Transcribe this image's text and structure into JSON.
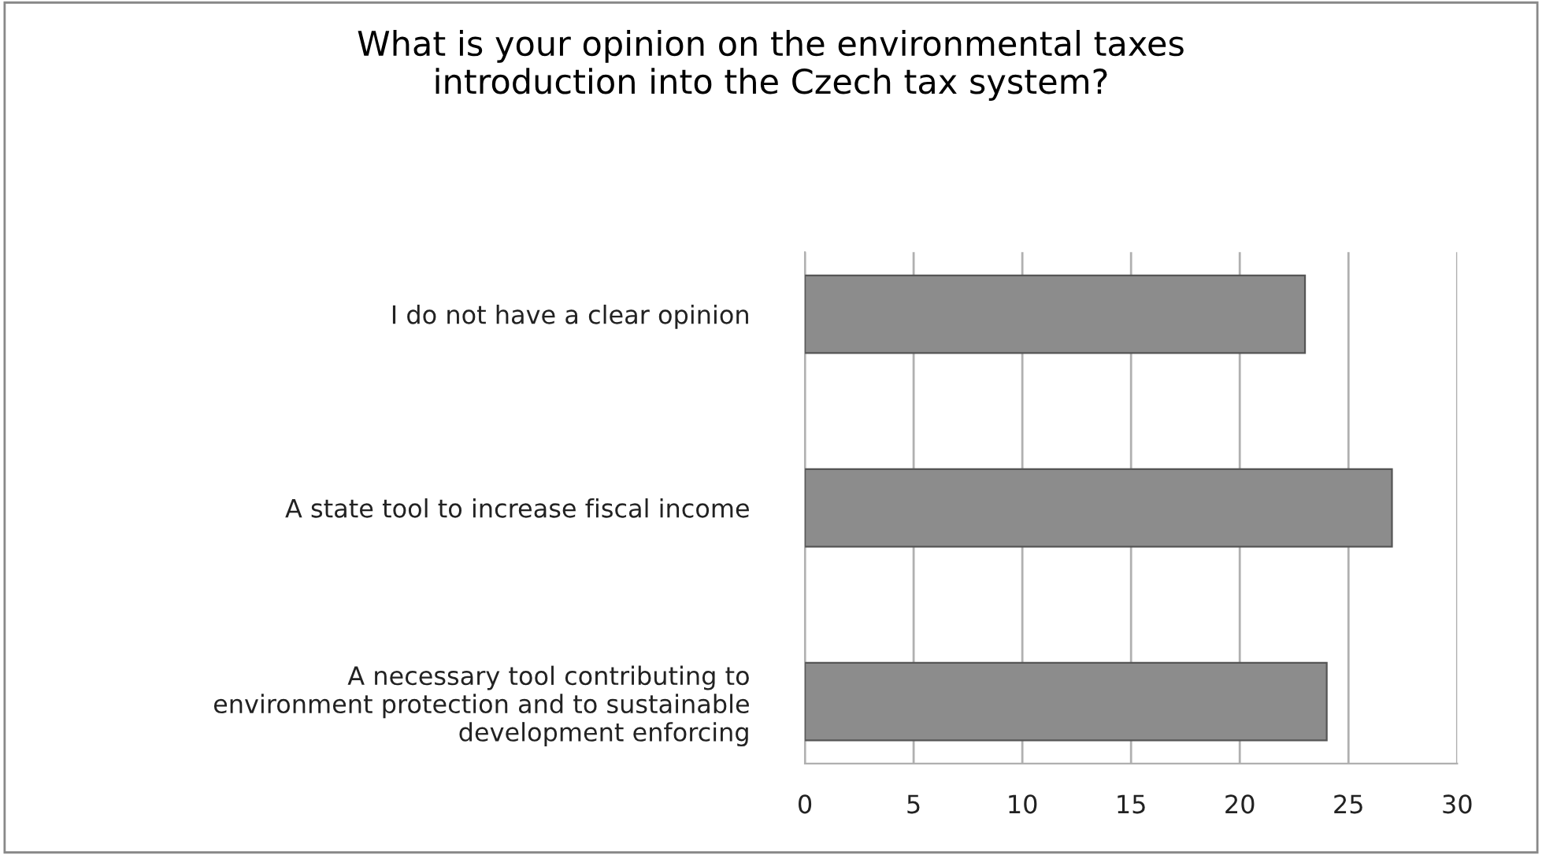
{
  "chart_data": {
    "type": "bar",
    "orientation": "horizontal",
    "title": "What is your opinion on the environmental taxes\nintroduction into the Czech tax system?",
    "categories": [
      "I do not have a clear opinion",
      "A state tool to increase fiscal income",
      "A necessary tool contributing to\nenvironment protection and to sustainable\ndevelopment enforcing"
    ],
    "values": [
      23,
      27,
      24
    ],
    "color": "#8c8c8c",
    "xlim": [
      0,
      30
    ],
    "xticks": [
      0,
      5,
      10,
      15,
      20,
      25,
      30
    ],
    "grid": "x",
    "legend": false
  }
}
